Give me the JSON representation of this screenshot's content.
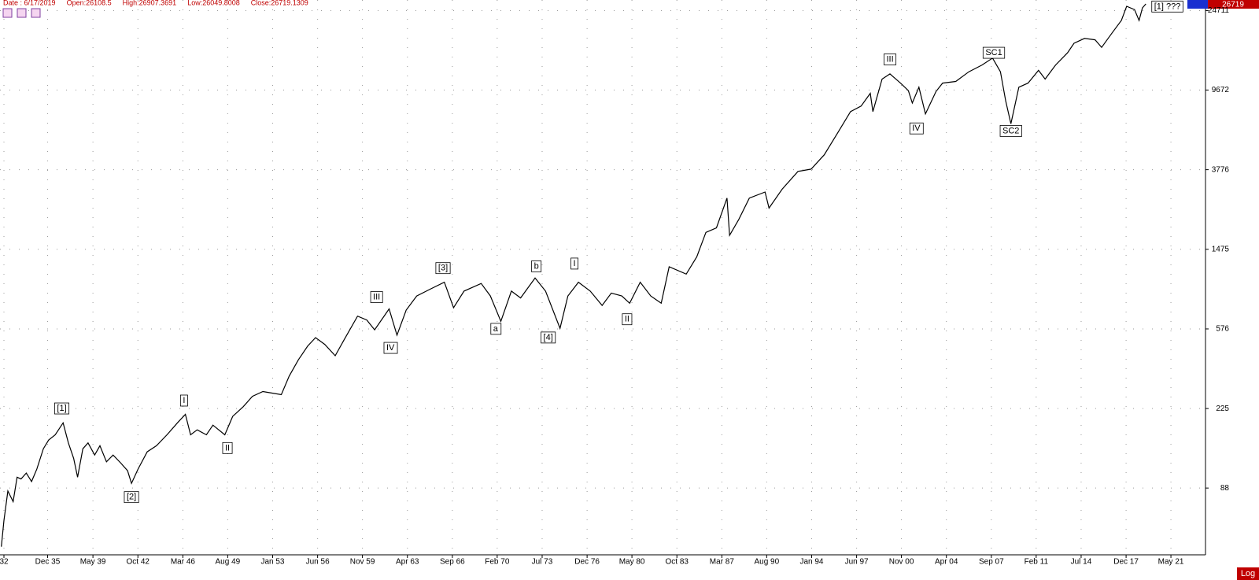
{
  "chart_data": {
    "type": "line",
    "header": [
      "Date : 6/17/2019",
      "Open:26108.5",
      "High:26907.3691",
      "Low:26049.8008",
      "Close:26719.1309"
    ],
    "price_tag": "26719",
    "scale_label": "Log",
    "log": true,
    "grid": true,
    "xlim": [
      1932.3,
      2024.0
    ],
    "ylim": [
      40,
      28000
    ],
    "xticks": [
      {
        "value": 1932.6,
        "label": "32"
      },
      {
        "value": 1935.92,
        "label": "Dec 35"
      },
      {
        "value": 1939.37,
        "label": "May 39"
      },
      {
        "value": 1942.79,
        "label": "Oct 42"
      },
      {
        "value": 1946.21,
        "label": "Mar 46"
      },
      {
        "value": 1949.62,
        "label": "Aug 49"
      },
      {
        "value": 1953.04,
        "label": "Jan 53"
      },
      {
        "value": 1956.46,
        "label": "Jun 56"
      },
      {
        "value": 1959.87,
        "label": "Nov 59"
      },
      {
        "value": 1963.29,
        "label": "Apr 63"
      },
      {
        "value": 1966.71,
        "label": "Sep 66"
      },
      {
        "value": 1970.12,
        "label": "Feb 70"
      },
      {
        "value": 1973.54,
        "label": "Jul 73"
      },
      {
        "value": 1976.96,
        "label": "Dec 76"
      },
      {
        "value": 1980.37,
        "label": "May 80"
      },
      {
        "value": 1983.79,
        "label": "Oct 83"
      },
      {
        "value": 1987.21,
        "label": "Mar 87"
      },
      {
        "value": 1990.62,
        "label": "Aug 90"
      },
      {
        "value": 1994.04,
        "label": "Jan 94"
      },
      {
        "value": 1997.46,
        "label": "Jun 97"
      },
      {
        "value": 2000.87,
        "label": "Nov 00"
      },
      {
        "value": 2004.29,
        "label": "Apr 04"
      },
      {
        "value": 2007.71,
        "label": "Sep 07"
      },
      {
        "value": 2011.12,
        "label": "Feb 11"
      },
      {
        "value": 2014.54,
        "label": "Jul 14"
      },
      {
        "value": 2017.96,
        "label": "Dec 17"
      },
      {
        "value": 2021.37,
        "label": "May 21"
      }
    ],
    "yticks": [
      88,
      225,
      576,
      1475,
      3776,
      9672,
      24711
    ],
    "series": [
      {
        "color": "#000000",
        "x": [
          1932.4,
          1932.6,
          1932.9,
          1933.3,
          1933.6,
          1933.9,
          1934.3,
          1934.7,
          1935.1,
          1935.6,
          1936.0,
          1936.5,
          1937.1,
          1937.5,
          1937.9,
          1938.2,
          1938.6,
          1939.0,
          1939.5,
          1939.9,
          1940.4,
          1940.9,
          1941.5,
          1942.0,
          1942.3,
          1942.8,
          1943.5,
          1944.2,
          1945.0,
          1945.8,
          1946.4,
          1946.8,
          1947.3,
          1948.0,
          1948.5,
          1949.4,
          1950.0,
          1950.8,
          1951.5,
          1952.3,
          1953.0,
          1953.7,
          1954.3,
          1955.0,
          1955.7,
          1956.3,
          1957.0,
          1957.8,
          1958.5,
          1959.5,
          1960.2,
          1960.8,
          1961.9,
          1962.5,
          1963.2,
          1964.0,
          1965.0,
          1966.1,
          1966.8,
          1967.6,
          1968.9,
          1969.6,
          1970.4,
          1971.2,
          1971.9,
          1973.0,
          1973.8,
          1974.9,
          1975.5,
          1976.3,
          1977.2,
          1978.1,
          1978.8,
          1979.6,
          1980.2,
          1981.0,
          1981.8,
          1982.6,
          1983.2,
          1984.5,
          1985.3,
          1986.0,
          1986.8,
          1987.6,
          1987.8,
          1988.5,
          1989.3,
          1990.5,
          1990.8,
          1991.8,
          1993.0,
          1994.0,
          1995.0,
          1996.0,
          1997.0,
          1997.8,
          1998.5,
          1998.7,
          1999.4,
          2000.0,
          2000.8,
          2001.4,
          2001.7,
          2002.2,
          2002.7,
          2003.5,
          2004.0,
          2005.0,
          2006.0,
          2007.0,
          2007.8,
          2008.4,
          2008.8,
          2009.2,
          2009.8,
          2010.5,
          2011.3,
          2011.8,
          2012.6,
          2013.5,
          2014.0,
          2014.8,
          2015.6,
          2016.1,
          2016.9,
          2017.6,
          2018.0,
          2018.6,
          2018.95,
          2019.2,
          2019.46
        ],
        "values": [
          44,
          60,
          85,
          75,
          100,
          98,
          105,
          95,
          110,
          140,
          155,
          165,
          190,
          150,
          125,
          100,
          140,
          150,
          130,
          145,
          120,
          130,
          118,
          108,
          93,
          110,
          135,
          145,
          165,
          190,
          210,
          165,
          175,
          165,
          185,
          165,
          205,
          230,
          260,
          275,
          270,
          265,
          330,
          400,
          470,
          520,
          480,
          420,
          510,
          670,
          640,
          570,
          730,
          535,
          720,
          850,
          920,
          1000,
          740,
          900,
          985,
          850,
          630,
          900,
          830,
          1050,
          900,
          580,
          850,
          1000,
          900,
          760,
          880,
          850,
          780,
          1000,
          850,
          780,
          1200,
          1100,
          1350,
          1800,
          1900,
          2700,
          1740,
          2100,
          2700,
          2900,
          2400,
          3000,
          3700,
          3800,
          4500,
          5800,
          7500,
          8000,
          9300,
          7500,
          11000,
          11700,
          10500,
          9600,
          8300,
          10000,
          7300,
          9500,
          10500,
          10700,
          12000,
          13000,
          14100,
          12000,
          8500,
          6500,
          10000,
          10500,
          12200,
          11000,
          13000,
          15000,
          16800,
          17800,
          17500,
          16000,
          19000,
          22000,
          26000,
          25000,
          22000,
          25500,
          26719
        ]
      }
    ],
    "annotations": [
      {
        "text": "[1]",
        "x": 1937.0,
        "y": 225
      },
      {
        "text": "[2]",
        "x": 1942.3,
        "y": 79
      },
      {
        "text": "I",
        "x": 1946.3,
        "y": 247
      },
      {
        "text": "II",
        "x": 1949.6,
        "y": 141
      },
      {
        "text": "III",
        "x": 1960.95,
        "y": 838
      },
      {
        "text": "IV",
        "x": 1962.0,
        "y": 460
      },
      {
        "text": "[3]",
        "x": 1966.0,
        "y": 1180
      },
      {
        "text": "a",
        "x": 1970.0,
        "y": 576
      },
      {
        "text": "b",
        "x": 1973.1,
        "y": 1205
      },
      {
        "text": "[4]",
        "x": 1974.0,
        "y": 520
      },
      {
        "text": "I",
        "x": 1976.0,
        "y": 1245
      },
      {
        "text": "II",
        "x": 1980.0,
        "y": 645
      },
      {
        "text": "III",
        "x": 2000.0,
        "y": 13870
      },
      {
        "text": "IV",
        "x": 2002.0,
        "y": 6140
      },
      {
        "text": "SC1",
        "x": 2007.9,
        "y": 15000
      },
      {
        "text": "SC2",
        "x": 2009.2,
        "y": 5960
      },
      {
        "text": "[1] ???",
        "x": 2021.1,
        "y": 25900
      }
    ]
  }
}
